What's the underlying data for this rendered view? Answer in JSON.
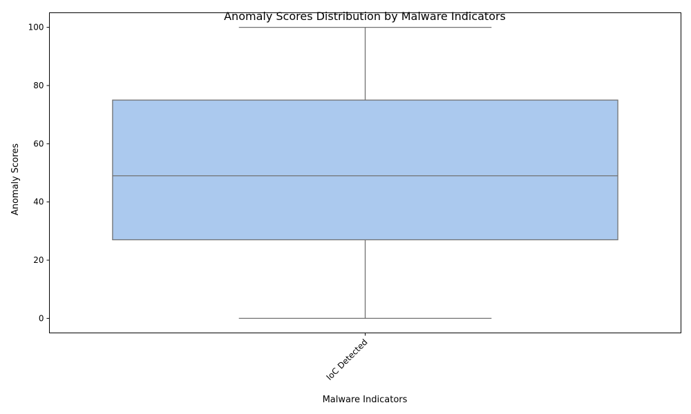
{
  "chart_data": {
    "type": "box",
    "title": "Anomaly Scores Distribution by Malware Indicators",
    "xlabel": "Malware Indicators",
    "ylabel": "Anomaly Scores",
    "categories": [
      "IoC Detected"
    ],
    "boxes": [
      {
        "category": "IoC Detected",
        "min": 0,
        "q1": 27,
        "median": 49,
        "q3": 75,
        "max": 100
      }
    ],
    "y_ticks": [
      0,
      20,
      40,
      60,
      80,
      100
    ],
    "ylim": [
      -5,
      105
    ],
    "grid": false,
    "x_tick_rotation_deg": 45,
    "colors": {
      "box_fill": "#abc9ee",
      "box_line": "#707070"
    }
  }
}
